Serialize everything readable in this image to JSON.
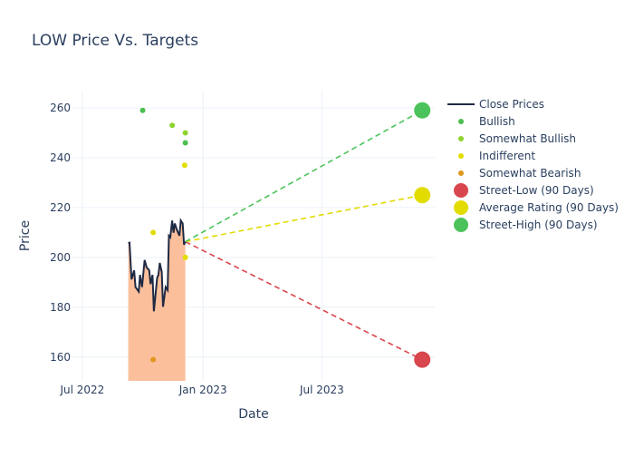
{
  "chart_data": {
    "type": "line",
    "title": "LOW Price Vs. Targets",
    "xlabel": "Date",
    "ylabel": "Price",
    "xlim": [
      "2022-06-16",
      "2023-12-20"
    ],
    "ylim": [
      150.5,
      266.9
    ],
    "x_ticks": [
      {
        "date": "2022-07-01",
        "label": "Jul 2022"
      },
      {
        "date": "2023-01-01",
        "label": "Jan 2023"
      },
      {
        "date": "2023-07-01",
        "label": "Jul 2023"
      }
    ],
    "y_ticks": [
      160,
      180,
      200,
      220,
      240,
      260
    ],
    "grid": true,
    "legend_placement": "right",
    "close_prices": {
      "name": "Close Prices",
      "color": "#1f2a44",
      "fill_color": "#fbbf9b",
      "x": [
        "2022-09-09",
        "2022-09-11",
        "2022-09-14",
        "2022-09-16",
        "2022-09-18",
        "2022-09-20",
        "2022-09-25",
        "2022-09-27",
        "2022-09-30",
        "2022-10-04",
        "2022-10-07",
        "2022-10-11",
        "2022-10-13",
        "2022-10-16",
        "2022-10-18",
        "2022-10-23",
        "2022-10-25",
        "2022-10-27",
        "2022-10-30",
        "2022-11-01",
        "2022-11-05",
        "2022-11-08",
        "2022-11-10",
        "2022-11-12",
        "2022-11-15",
        "2022-11-17",
        "2022-11-19",
        "2022-11-22",
        "2022-11-24",
        "2022-11-26",
        "2022-11-28",
        "2022-12-01",
        "2022-12-03",
        "2022-12-05"
      ],
      "y": [
        205.7,
        205.9,
        191.2,
        193,
        194.8,
        188.1,
        186.3,
        193,
        188.1,
        199,
        196,
        194.8,
        189.3,
        193,
        178.4,
        191.8,
        193,
        197.8,
        194.2,
        180.2,
        188.1,
        186.9,
        208.7,
        208.1,
        214.8,
        209.9,
        213.6,
        211.2,
        209.9,
        208.7,
        214.8,
        213.6,
        205.1,
        206.3
      ]
    },
    "ratings": [
      {
        "name": "Bullish",
        "color": "#4cbf4f",
        "points": [
          {
            "x": "2022-10-01",
            "y": 259
          },
          {
            "x": "2022-12-05",
            "y": 246
          }
        ]
      },
      {
        "name": "Somewhat Bullish",
        "color": "#8fd22f",
        "points": [
          {
            "x": "2022-11-15",
            "y": 253
          },
          {
            "x": "2022-12-05",
            "y": 250
          }
        ]
      },
      {
        "name": "Indifferent",
        "color": "#e2dc00",
        "points": [
          {
            "x": "2022-12-04",
            "y": 237
          },
          {
            "x": "2022-10-17",
            "y": 210
          },
          {
            "x": "2022-12-05",
            "y": 200
          }
        ]
      },
      {
        "name": "Somewhat Bearish",
        "color": "#e0961e",
        "points": [
          {
            "x": "2022-10-17",
            "y": 159
          }
        ]
      }
    ],
    "targets": [
      {
        "name": "Street-Low (90 Days)",
        "color": "#d9464d",
        "x": "2023-12-01",
        "y": 159
      },
      {
        "name": "Average Rating (90 Days)",
        "color": "#e2dc00",
        "x": "2023-12-01",
        "y": 225
      },
      {
        "name": "Street-High (90 Days)",
        "color": "#4cc35a",
        "x": "2023-12-01",
        "y": 259
      }
    ]
  }
}
